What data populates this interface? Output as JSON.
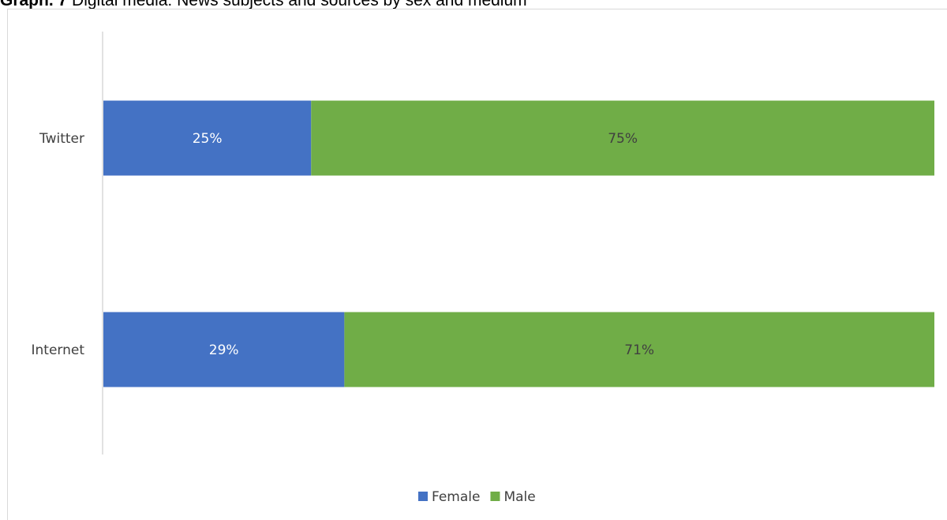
{
  "title": {
    "prefix": "Graph. 7",
    "text": "Digital media: News subjects and sources by sex and medium"
  },
  "chart_data": {
    "type": "bar",
    "orientation": "horizontal",
    "stacked": "100%",
    "categories": [
      "Twitter",
      "Internet"
    ],
    "series": [
      {
        "name": "Female",
        "values": [
          25,
          29
        ],
        "labels": [
          "25%",
          "29%"
        ],
        "color": "#4472c4",
        "label_color": "#ffffff"
      },
      {
        "name": "Male",
        "values": [
          75,
          71
        ],
        "labels": [
          "75%",
          "71%"
        ],
        "color": "#70ad47",
        "label_color": "#404040"
      }
    ],
    "xlim": [
      0,
      100
    ],
    "legend": "bottom",
    "grid": false
  }
}
